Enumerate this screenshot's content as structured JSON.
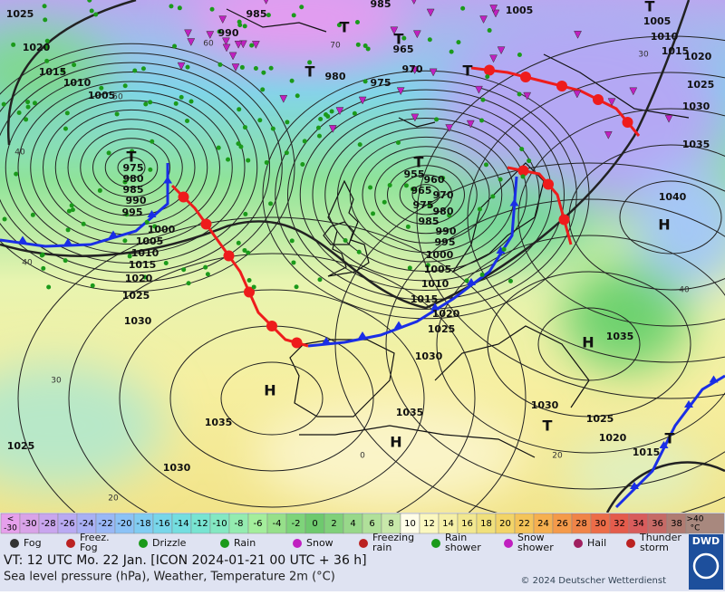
{
  "map": {
    "isobar_labels": [
      "1025",
      "1020",
      "1015",
      "1010",
      "1005",
      "985",
      "990",
      "980",
      "975",
      "970",
      "965",
      "985",
      "1005",
      "1005",
      "1010",
      "1015",
      "1020",
      "1025",
      "1030",
      "1035",
      "1040",
      "975",
      "980",
      "985",
      "990",
      "995",
      "1000",
      "1005",
      "1010",
      "1015",
      "1020",
      "1025",
      "1030",
      "955",
      "960",
      "965",
      "970",
      "975",
      "980",
      "985",
      "990",
      "995",
      "1000",
      "1005",
      "1010",
      "1015",
      "1020",
      "1025",
      "1030",
      "1035",
      "1030",
      "1035",
      "1025",
      "1020",
      "1015",
      "1035",
      "1030",
      "1025"
    ],
    "pressure_centers": [
      "T",
      "T",
      "T",
      "T",
      "T",
      "T",
      "T",
      "T",
      "T",
      "H",
      "H",
      "H",
      "H"
    ],
    "temperature_labels": [
      "40",
      "40",
      "30",
      "20",
      "60",
      "70",
      "50",
      "40",
      "30",
      "20",
      "0"
    ]
  },
  "scale": {
    "first": {
      "label": "<",
      "sub": "-30"
    },
    "values": [
      -30,
      -28,
      -26,
      -24,
      -22,
      -20,
      -18,
      -16,
      -14,
      -12,
      -10,
      -8,
      -6,
      -4,
      -2,
      0,
      2,
      4,
      6,
      8,
      10,
      12,
      14,
      16,
      18,
      20,
      22,
      24,
      26,
      28,
      30,
      32,
      34,
      36,
      38
    ],
    "colors": [
      "#d9a3e8",
      "#c9a6ee",
      "#b9aaf2",
      "#a9b0f4",
      "#9ab8f6",
      "#8cc2f6",
      "#80ccf2",
      "#78d6ea",
      "#74dee0",
      "#78e4d2",
      "#84e8c2",
      "#94ecb0",
      "#a4ee9c",
      "#96e08a",
      "#7ed47a",
      "#6ec96e",
      "#80d07a",
      "#98d88a",
      "#b0e09a",
      "#c8e8aa",
      "#fffde8",
      "#fbf8c0",
      "#f6f0a8",
      "#f2e890",
      "#f0e07c",
      "#f2d468",
      "#f4c45a",
      "#f6b050",
      "#f49a4a",
      "#f08448",
      "#ec6c48",
      "#e45c4c",
      "#d85c5c",
      "#c66a66",
      "#b07c72"
    ],
    "last": {
      "label": ">40",
      "sub": "°C"
    },
    "first_color": "#e6a0ec",
    "last_color": "#a8887e"
  },
  "legend": {
    "items": [
      [
        "Fog"
      ],
      [
        "Freez.",
        "Fog"
      ],
      [
        "Drizzle"
      ],
      [
        "Rain"
      ],
      [
        "Snow"
      ],
      [
        "Freezing",
        "rain"
      ],
      [
        "Rain",
        "shower"
      ],
      [
        "Snow",
        "shower"
      ],
      [
        "Hail"
      ],
      [
        "Thunder",
        "storm"
      ]
    ]
  },
  "footer": {
    "valid_time": "VT: 12 UTC Mo.  22 Jan. [ICON 2024-01-21  00 UTC + 36 h]",
    "subtitle": "Sea level pressure (hPa), Weather, Temperature 2m (°C)",
    "copyright": "© 2024 Deutscher Wetterdienst",
    "logo": "DWD"
  }
}
